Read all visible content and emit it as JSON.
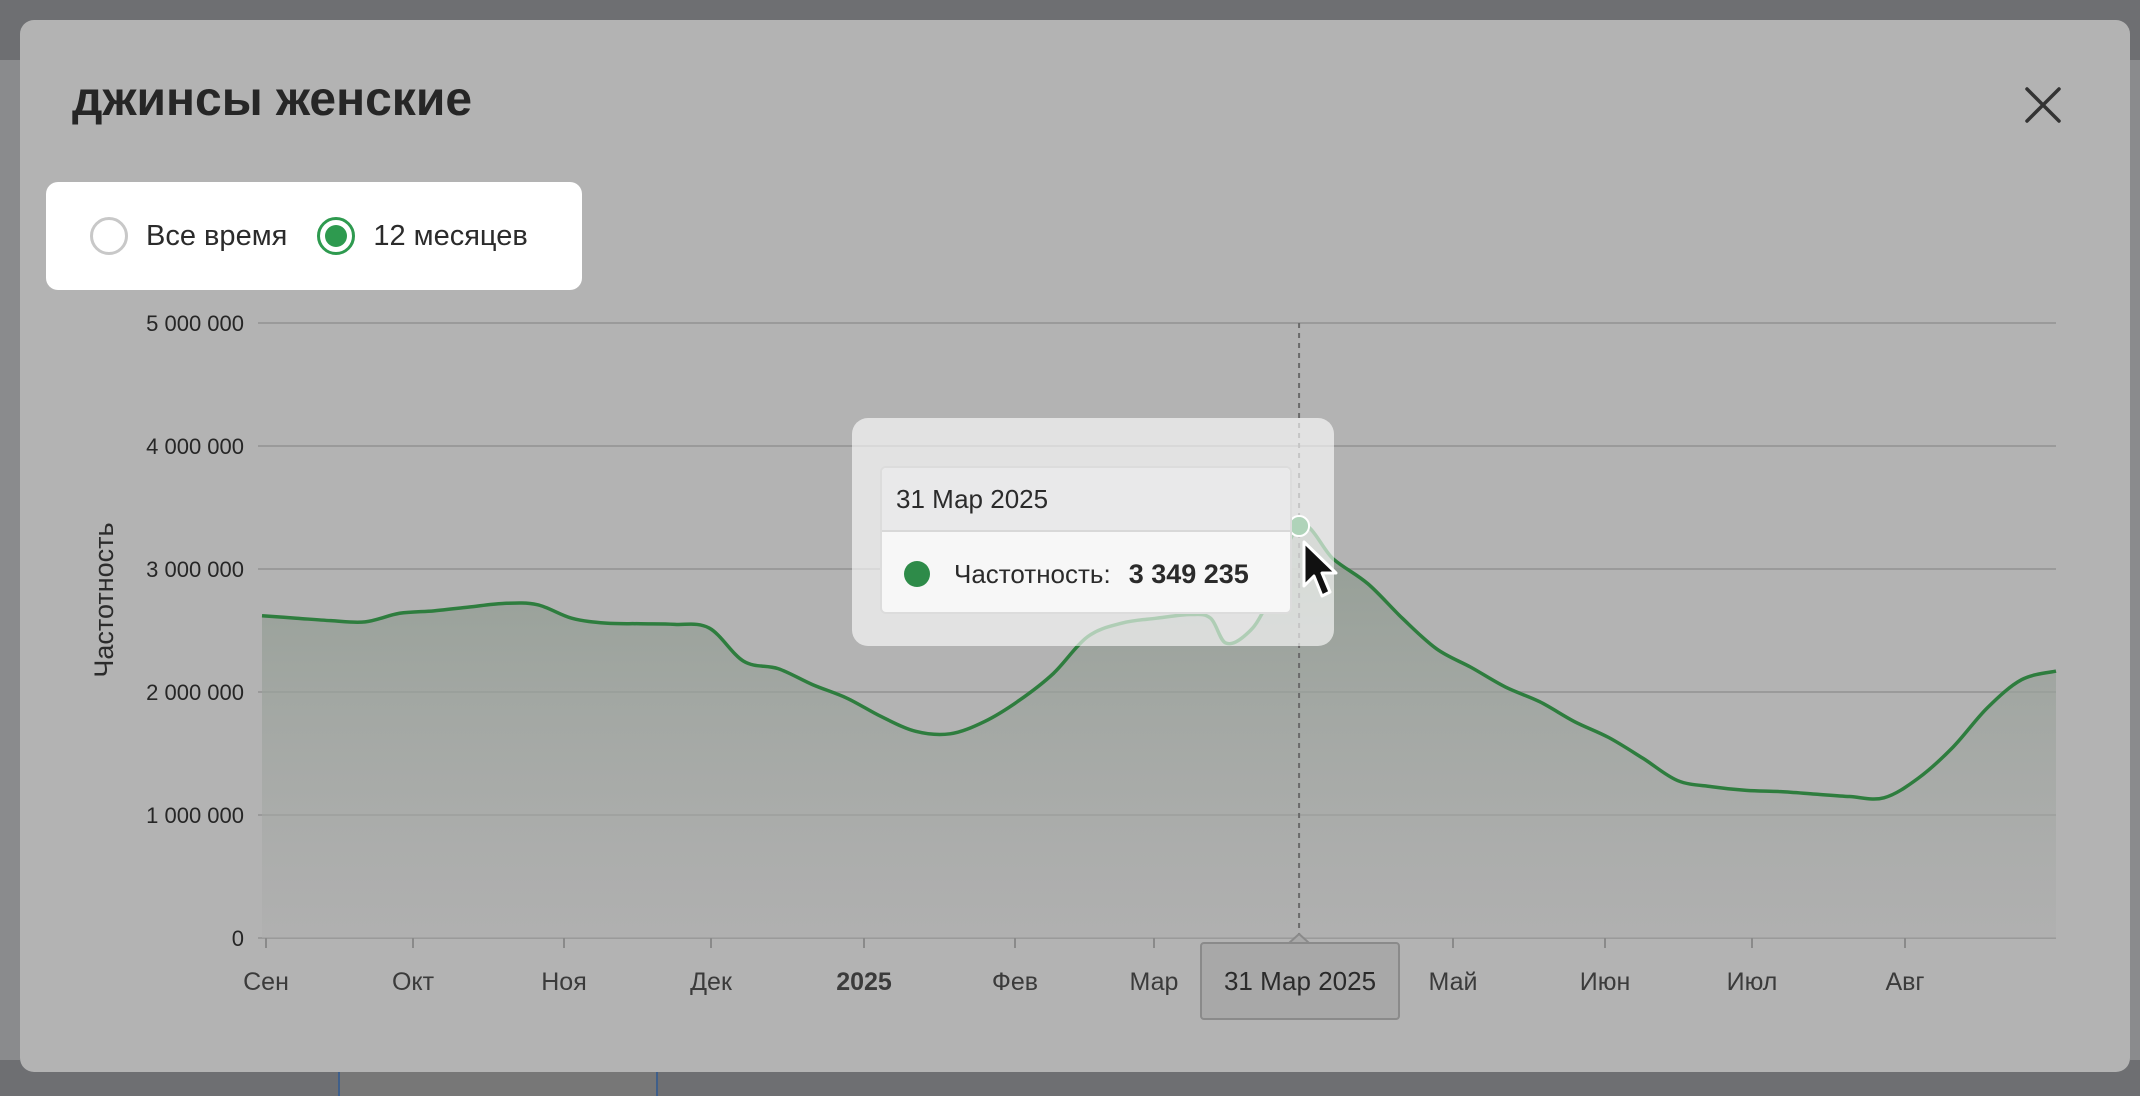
{
  "modal": {
    "title": "джинсы женские",
    "close_icon": "close-icon"
  },
  "period_filter": {
    "options": [
      {
        "label": "Все время",
        "selected": false
      },
      {
        "label": "12 месяцев",
        "selected": true
      }
    ]
  },
  "colors": {
    "accent": "#2e9a4f",
    "line": "#2e7d3e",
    "point": "#2e8b49"
  },
  "chart_data": {
    "type": "area",
    "ylabel": "Частотность",
    "yticks": [
      "5 000 000",
      "4 000 000",
      "3 000 000",
      "2 000 000",
      "1 000 000",
      "0"
    ],
    "ylim": [
      0,
      5000000
    ],
    "xticks": [
      {
        "label": "Сен",
        "bold": false
      },
      {
        "label": "Окт",
        "bold": false
      },
      {
        "label": "Ноя",
        "bold": false
      },
      {
        "label": "Дек",
        "bold": false
      },
      {
        "label": "2025",
        "bold": true
      },
      {
        "label": "Фев",
        "bold": false
      },
      {
        "label": "Мар",
        "bold": false
      },
      {
        "label": "Май",
        "bold": false
      },
      {
        "label": "Июн",
        "bold": false
      },
      {
        "label": "Июл",
        "bold": false
      },
      {
        "label": "Авг",
        "bold": false
      }
    ],
    "grid": true,
    "series": [
      {
        "name": "Частотность",
        "points": [
          [
            "2024-09-01",
            2620000
          ],
          [
            "2024-09-08",
            2600000
          ],
          [
            "2024-09-15",
            2580000
          ],
          [
            "2024-09-22",
            2570000
          ],
          [
            "2024-09-29",
            2640000
          ],
          [
            "2024-10-06",
            2660000
          ],
          [
            "2024-10-13",
            2690000
          ],
          [
            "2024-10-20",
            2720000
          ],
          [
            "2024-10-27",
            2710000
          ],
          [
            "2024-11-03",
            2600000
          ],
          [
            "2024-11-10",
            2560000
          ],
          [
            "2024-11-17",
            2555000
          ],
          [
            "2024-11-24",
            2550000
          ],
          [
            "2024-12-01",
            2520000
          ],
          [
            "2024-12-08",
            2250000
          ],
          [
            "2024-12-15",
            2190000
          ],
          [
            "2024-12-22",
            2060000
          ],
          [
            "2024-12-29",
            1950000
          ],
          [
            "2025-01-05",
            1800000
          ],
          [
            "2025-01-12",
            1680000
          ],
          [
            "2025-01-19",
            1660000
          ],
          [
            "2025-01-26",
            1760000
          ],
          [
            "2025-02-02",
            1930000
          ],
          [
            "2025-02-09",
            2150000
          ],
          [
            "2025-02-16",
            2450000
          ],
          [
            "2025-02-23",
            2560000
          ],
          [
            "2025-03-02",
            2600000
          ],
          [
            "2025-03-09",
            2630000
          ],
          [
            "2025-03-13",
            2600000
          ],
          [
            "2025-03-16",
            2400000
          ],
          [
            "2025-03-20",
            2460000
          ],
          [
            "2025-03-24",
            2680000
          ],
          [
            "2025-03-31",
            3349235
          ],
          [
            "2025-04-07",
            3080000
          ],
          [
            "2025-04-14",
            2880000
          ],
          [
            "2025-04-21",
            2600000
          ],
          [
            "2025-04-28",
            2350000
          ],
          [
            "2025-05-05",
            2200000
          ],
          [
            "2025-05-12",
            2040000
          ],
          [
            "2025-05-19",
            1920000
          ],
          [
            "2025-05-26",
            1760000
          ],
          [
            "2025-06-02",
            1630000
          ],
          [
            "2025-06-09",
            1460000
          ],
          [
            "2025-06-16",
            1280000
          ],
          [
            "2025-06-23",
            1230000
          ],
          [
            "2025-06-30",
            1200000
          ],
          [
            "2025-07-07",
            1190000
          ],
          [
            "2025-07-14",
            1170000
          ],
          [
            "2025-07-21",
            1150000
          ],
          [
            "2025-07-28",
            1140000
          ],
          [
            "2025-08-04",
            1300000
          ],
          [
            "2025-08-11",
            1550000
          ],
          [
            "2025-08-18",
            1870000
          ],
          [
            "2025-08-25",
            2100000
          ],
          [
            "2025-09-01",
            2170000
          ]
        ]
      }
    ],
    "highlight": {
      "date_label": "31 Мар 2025",
      "series_label": "Частотность:",
      "value_label": "3 349 235",
      "x": "2025-03-31",
      "y": 3349235
    }
  }
}
